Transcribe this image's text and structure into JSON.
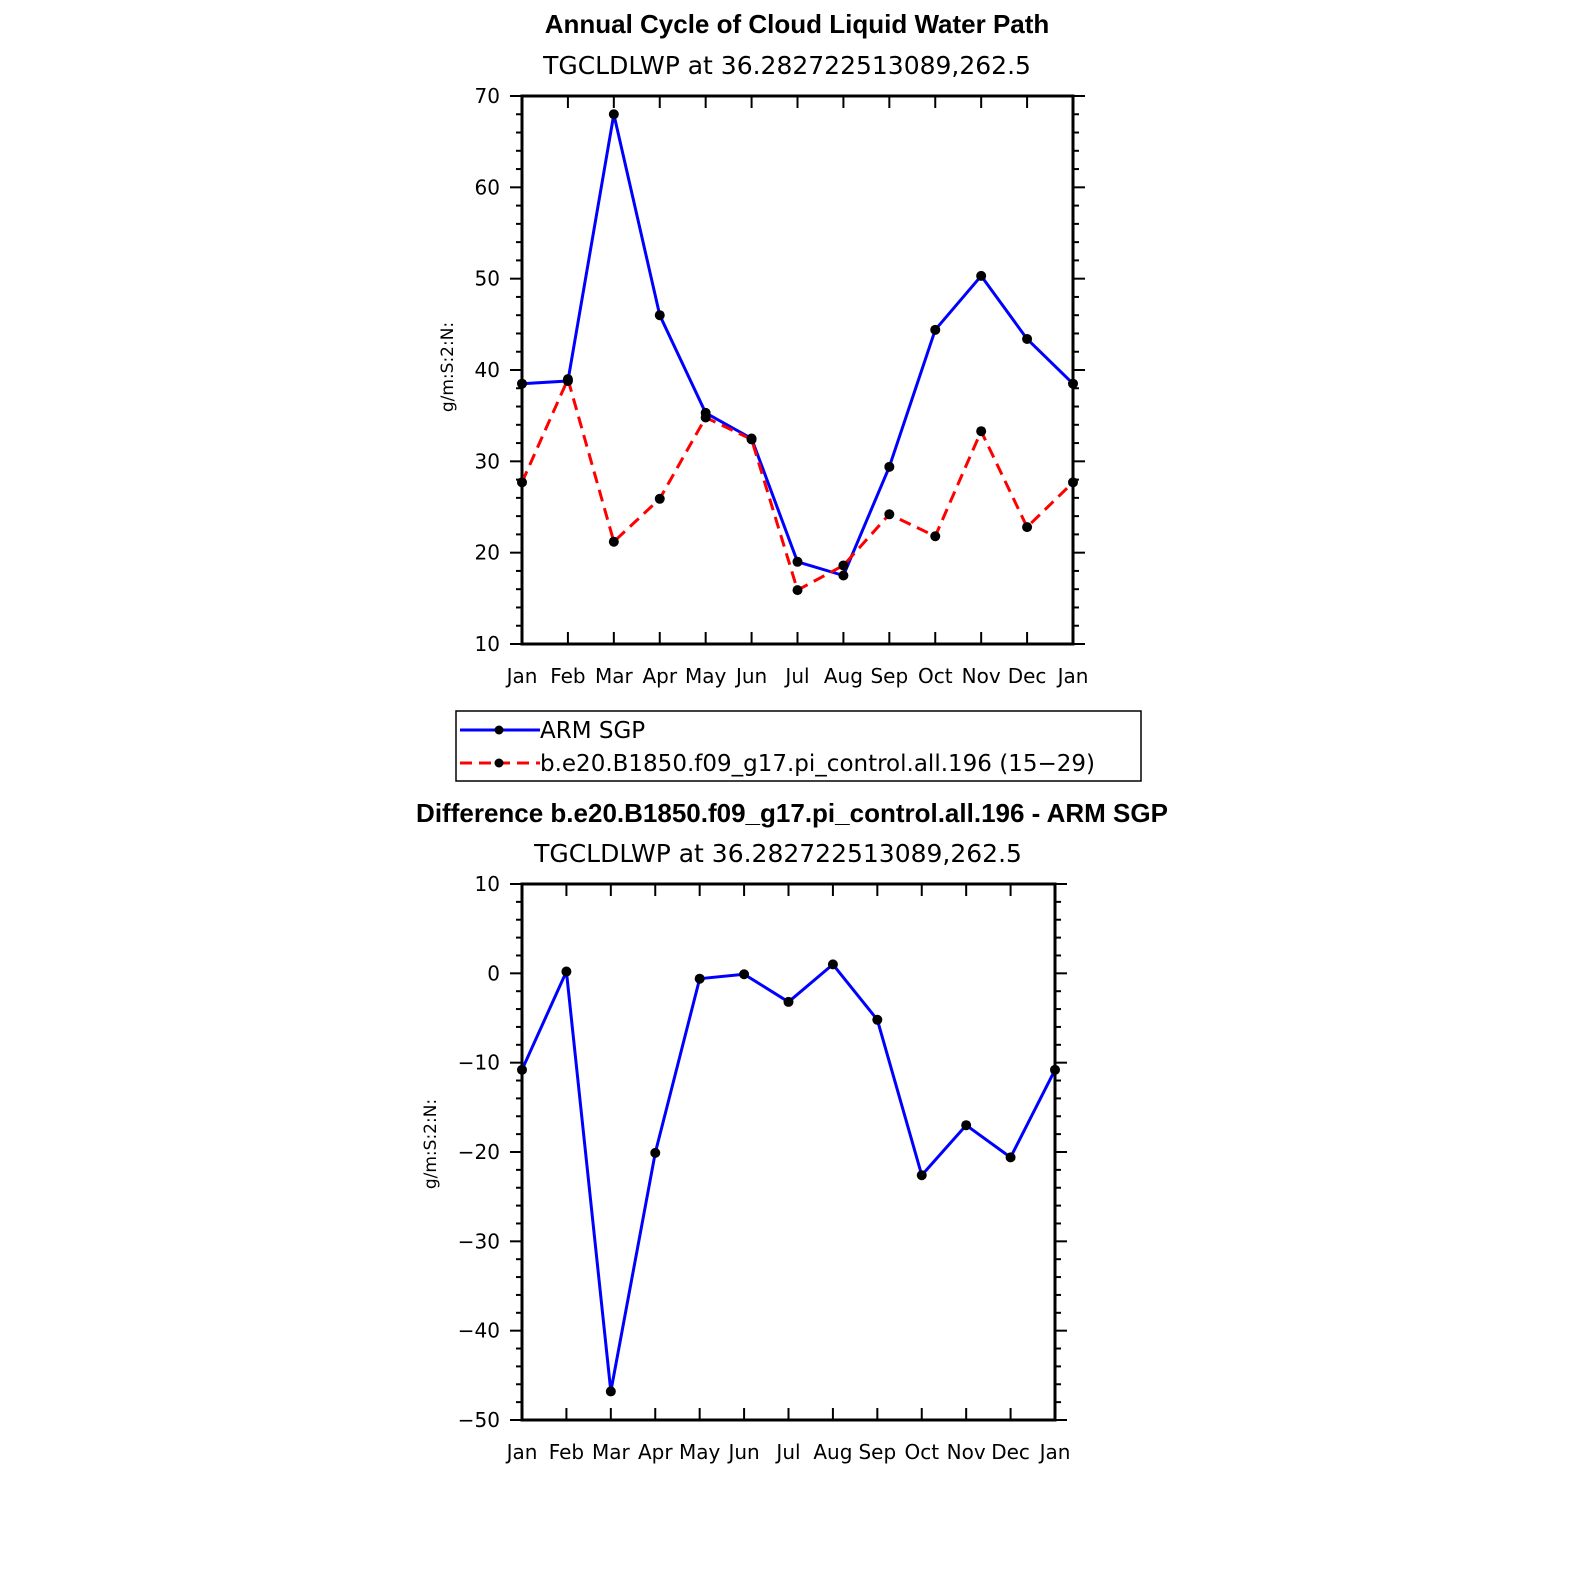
{
  "chart_data": [
    {
      "type": "line",
      "title": "Annual Cycle of Cloud Liquid Water Path",
      "subtitle": "TGCLDLWP  at  36.282722513089,262.5",
      "ylabel": "g/m:S:2:N:",
      "xlabel": "",
      "ylim": [
        10,
        70
      ],
      "yticks": [
        "70",
        "60",
        "50",
        "40",
        "30",
        "20",
        "10"
      ],
      "ytick_values": [
        70,
        60,
        50,
        40,
        30,
        20,
        10
      ],
      "categories": [
        "Jan",
        "Feb",
        "Mar",
        "Apr",
        "May",
        "Jun",
        "Jul",
        "Aug",
        "Sep",
        "Oct",
        "Nov",
        "Dec",
        "Jan"
      ],
      "series": [
        {
          "name": "ARM SGP",
          "color": "#0000ff",
          "dashed": false,
          "values": [
            38.5,
            38.8,
            68.0,
            46.0,
            35.3,
            32.5,
            19.0,
            17.5,
            29.4,
            44.4,
            50.3,
            43.4,
            38.5
          ]
        },
        {
          "name": "b.e20.B1850.f09_g17.pi_control.all.196 (15−29)",
          "color": "#ff0000",
          "dashed": true,
          "values": [
            27.7,
            39.0,
            21.2,
            25.9,
            34.8,
            32.4,
            15.9,
            18.6,
            24.2,
            21.8,
            33.3,
            22.8,
            27.7
          ]
        }
      ],
      "legend": "below"
    },
    {
      "type": "line",
      "title": "Difference b.e20.B1850.f09_g17.pi_control.all.196 - ARM SGP",
      "subtitle": "TGCLDLWP  at  36.282722513089,262.5",
      "ylabel": "g/m:S:2:N:",
      "xlabel": "",
      "ylim": [
        -50,
        10
      ],
      "yticks": [
        "10",
        "0",
        "−10",
        "−20",
        "−30",
        "−40",
        "−50"
      ],
      "ytick_values": [
        10,
        0,
        -10,
        -20,
        -30,
        -40,
        -50
      ],
      "categories": [
        "Jan",
        "Feb",
        "Mar",
        "Apr",
        "May",
        "Jun",
        "Jul",
        "Aug",
        "Sep",
        "Oct",
        "Nov",
        "Dec",
        "Jan"
      ],
      "series": [
        {
          "name": "Difference",
          "color": "#0000ff",
          "dashed": false,
          "values": [
            -10.8,
            0.2,
            -46.8,
            -20.1,
            -0.6,
            -0.1,
            -3.2,
            1.0,
            -5.2,
            -22.6,
            -17.0,
            -20.6,
            -10.8
          ]
        }
      ]
    }
  ]
}
